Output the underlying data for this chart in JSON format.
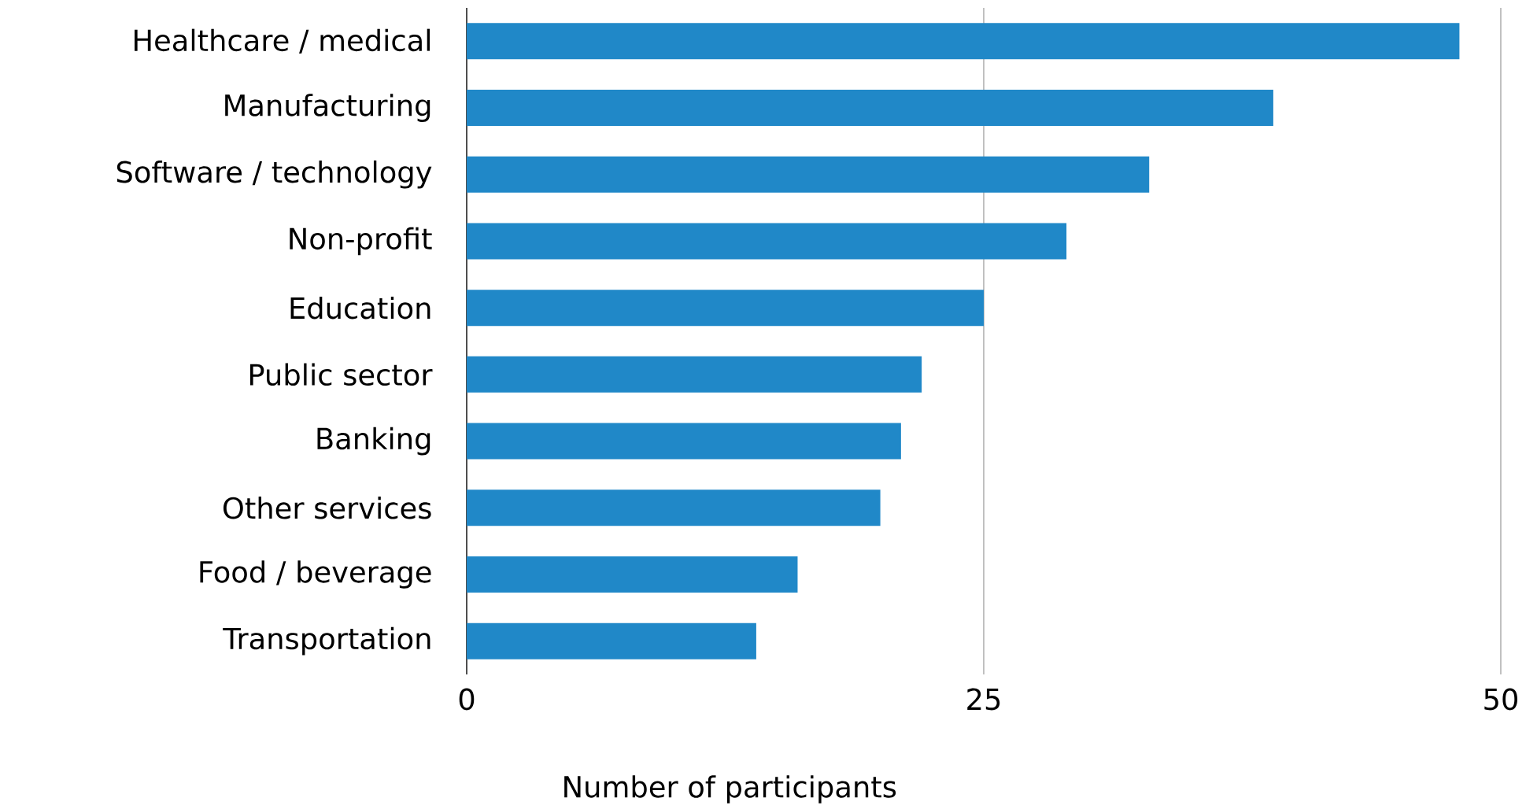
{
  "chart_data": {
    "type": "bar",
    "orientation": "horizontal",
    "xlabel": "Number of participants",
    "categories": [
      "Healthcare / medical",
      "Manufacturing",
      "Software / technology",
      "Non-profit",
      "Education",
      "Public sector",
      "Banking",
      "Other services",
      "Food / beverage",
      "Transportation"
    ],
    "values": [
      48,
      39,
      33,
      29,
      25,
      22,
      21,
      20,
      16,
      14
    ],
    "color": "#2088c8",
    "xlim": [
      0,
      50
    ],
    "xticks": [
      0,
      25,
      50
    ],
    "grid": "x"
  }
}
